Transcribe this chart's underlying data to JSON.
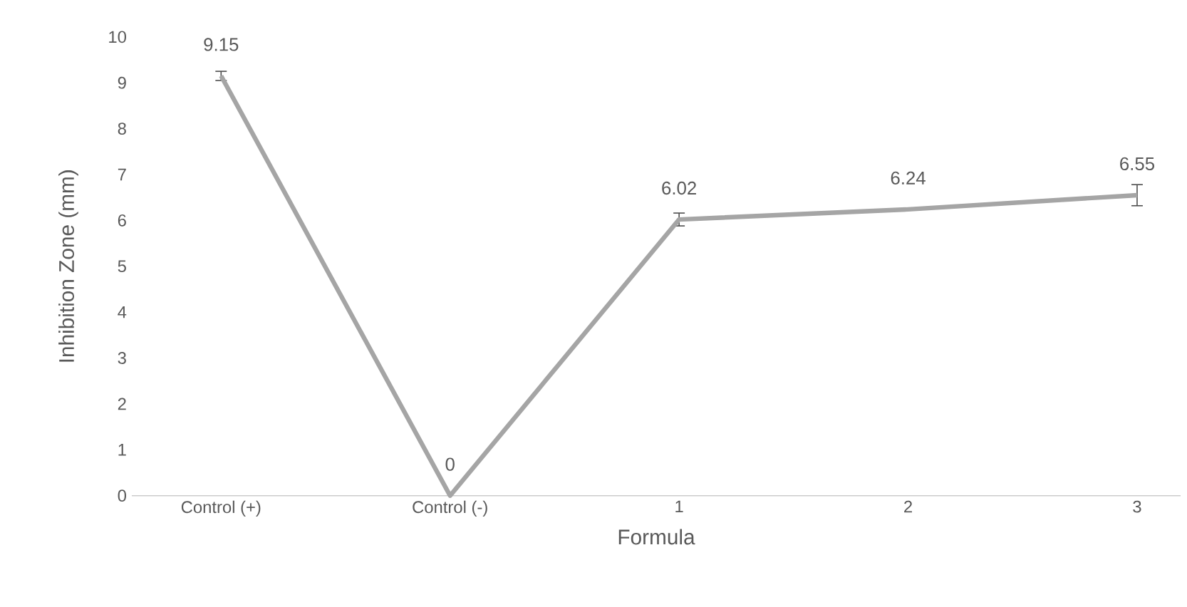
{
  "chart_data": {
    "type": "line",
    "xlabel": "Formula",
    "ylabel": "Inhibition Zone (mm)",
    "categories": [
      "Control (+)",
      "Control (-)",
      "1",
      "2",
      "3"
    ],
    "values": [
      9.15,
      0,
      6.02,
      6.24,
      6.55
    ],
    "errors": [
      0.1,
      null,
      0.14,
      null,
      0.23
    ],
    "color": "#a5a5a5",
    "data_labels": true,
    "marker": "none",
    "line_style": "solid",
    "grid": false,
    "ylim": [
      0,
      10
    ],
    "yticks": [
      0,
      1,
      2,
      3,
      4,
      5,
      6,
      7,
      8,
      9,
      10
    ]
  }
}
